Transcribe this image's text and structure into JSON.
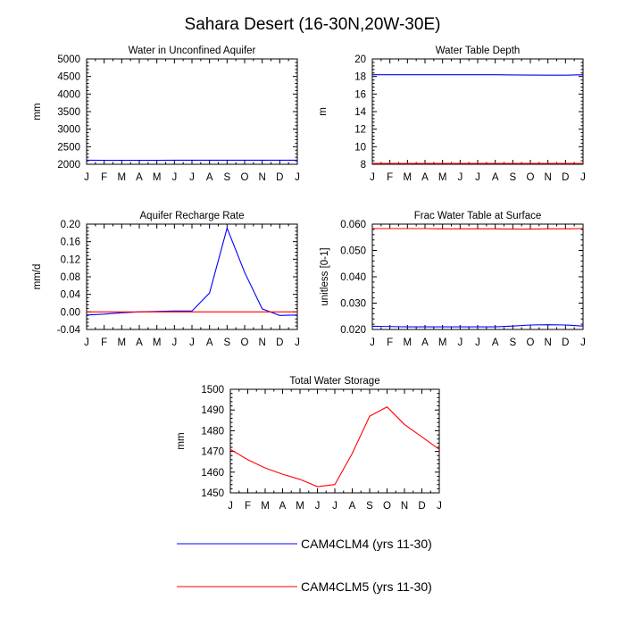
{
  "title": "Sahara Desert (16-30N,20W-30E)",
  "months": [
    "J",
    "F",
    "M",
    "A",
    "M",
    "J",
    "J",
    "A",
    "S",
    "O",
    "N",
    "D",
    "J"
  ],
  "legend": [
    {
      "label": "CAM4CLM4 (yrs 11-30)",
      "color": "#0000ff"
    },
    {
      "label": "CAM4CLM5 (yrs 11-30)",
      "color": "#ff0000"
    }
  ],
  "chart_data": [
    {
      "type": "line",
      "title": "Water in Unconfined Aquifer",
      "xlabel": "",
      "ylabel": "mm",
      "ylim": [
        2000,
        5000
      ],
      "yticks": [
        2000,
        2500,
        3000,
        3500,
        4000,
        4500,
        5000
      ],
      "yticklabels": [
        "2000",
        "2500",
        "3000",
        "3500",
        "4000",
        "4500",
        "5000"
      ],
      "categories": [
        "J",
        "F",
        "M",
        "A",
        "M",
        "J",
        "J",
        "A",
        "S",
        "O",
        "N",
        "D",
        "J"
      ],
      "series": [
        {
          "name": "CAM4CLM4 (yrs 11-30)",
          "color": "#0000ff",
          "values": [
            2115,
            2114,
            2114,
            2114,
            2114,
            2115,
            2115,
            2115,
            2115,
            2116,
            2116,
            2117,
            2116
          ]
        }
      ]
    },
    {
      "type": "line",
      "title": "Water Table Depth",
      "xlabel": "",
      "ylabel": "m",
      "ylim": [
        8,
        20
      ],
      "yticks": [
        8,
        10,
        12,
        14,
        16,
        18,
        20
      ],
      "yticklabels": [
        "8",
        "10",
        "12",
        "14",
        "16",
        "18",
        "20"
      ],
      "categories": [
        "J",
        "F",
        "M",
        "A",
        "M",
        "J",
        "J",
        "A",
        "S",
        "O",
        "N",
        "D",
        "J"
      ],
      "series": [
        {
          "name": "CAM4CLM4 (yrs 11-30)",
          "color": "#0000ff",
          "values": [
            18.2,
            18.2,
            18.2,
            18.2,
            18.2,
            18.2,
            18.2,
            18.2,
            18.18,
            18.16,
            18.15,
            18.15,
            18.2
          ]
        },
        {
          "name": "CAM4CLM5 (yrs 11-30)",
          "color": "#ff0000",
          "values": [
            8.1,
            8.1,
            8.1,
            8.1,
            8.1,
            8.1,
            8.1,
            8.1,
            8.1,
            8.1,
            8.1,
            8.1,
            8.1
          ]
        }
      ]
    },
    {
      "type": "line",
      "title": "Aquifer Recharge Rate",
      "xlabel": "",
      "ylabel": "mm/d",
      "ylim": [
        -0.04,
        0.2
      ],
      "yticks": [
        -0.04,
        0,
        0.04,
        0.08,
        0.12,
        0.16,
        0.2
      ],
      "yticklabels": [
        "-0.04",
        "0.00",
        "0.04",
        "0.08",
        "0.12",
        "0.16",
        "0.20"
      ],
      "categories": [
        "J",
        "F",
        "M",
        "A",
        "M",
        "J",
        "J",
        "A",
        "S",
        "O",
        "N",
        "D",
        "J"
      ],
      "series": [
        {
          "name": "CAM4CLM4 (yrs 11-30)",
          "color": "#0000ff",
          "values": [
            -0.007,
            -0.005,
            -0.002,
            0.0,
            0.001,
            0.002,
            0.002,
            0.043,
            0.191,
            0.09,
            0.007,
            -0.008,
            -0.007
          ]
        },
        {
          "name": "CAM4CLM5 (yrs 11-30)",
          "color": "#ff0000",
          "values": [
            0,
            0,
            0,
            0,
            0,
            0,
            0,
            0,
            0,
            0,
            0,
            0,
            0
          ]
        }
      ]
    },
    {
      "type": "line",
      "title": "Frac Water Table at Surface",
      "xlabel": "",
      "ylabel": "unitless [0-1]",
      "ylim": [
        0.02,
        0.06
      ],
      "yticks": [
        0.02,
        0.03,
        0.04,
        0.05,
        0.06
      ],
      "yticklabels": [
        "0.020",
        "0.030",
        "0.040",
        "0.050",
        "0.060"
      ],
      "categories": [
        "J",
        "F",
        "M",
        "A",
        "M",
        "J",
        "J",
        "A",
        "S",
        "O",
        "N",
        "D",
        "J"
      ],
      "series": [
        {
          "name": "CAM4CLM4 (yrs 11-30)",
          "color": "#0000ff",
          "values": [
            0.0212,
            0.0211,
            0.021,
            0.021,
            0.021,
            0.021,
            0.021,
            0.021,
            0.0213,
            0.0217,
            0.0218,
            0.0217,
            0.0213
          ]
        },
        {
          "name": "CAM4CLM5 (yrs 11-30)",
          "color": "#ff0000",
          "values": [
            0.0583,
            0.0583,
            0.0583,
            0.0583,
            0.0582,
            0.0582,
            0.0582,
            0.0582,
            0.0581,
            0.0581,
            0.0582,
            0.0582,
            0.0583
          ]
        }
      ]
    },
    {
      "type": "line",
      "title": "Total Water Storage",
      "xlabel": "",
      "ylabel": "mm",
      "ylim": [
        1450,
        1500
      ],
      "yticks": [
        1450,
        1460,
        1470,
        1480,
        1490,
        1500
      ],
      "yticklabels": [
        "1450",
        "1460",
        "1470",
        "1480",
        "1490",
        "1500"
      ],
      "categories": [
        "J",
        "F",
        "M",
        "A",
        "M",
        "J",
        "J",
        "A",
        "S",
        "O",
        "N",
        "D",
        "J"
      ],
      "series": [
        {
          "name": "CAM4CLM5 (yrs 11-30)",
          "color": "#ff0000",
          "values": [
            1471,
            1466,
            1462,
            1459,
            1456.5,
            1453,
            1454,
            1469,
            1487,
            1491.5,
            1483,
            1477,
            1471
          ]
        }
      ]
    }
  ]
}
